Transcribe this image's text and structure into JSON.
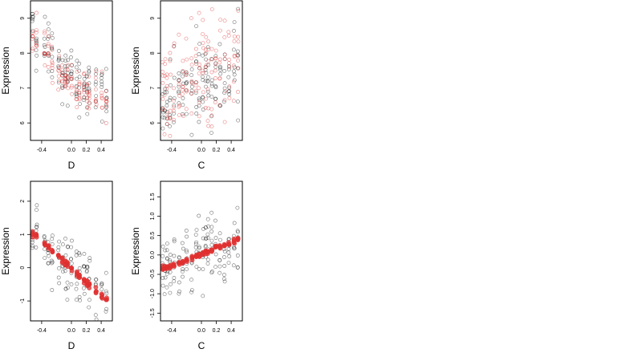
{
  "chart_data": [
    {
      "type": "scatter",
      "xlabel": "D",
      "ylabel": "Expression",
      "xlim": [
        -0.55,
        0.55
      ],
      "ylim": [
        5.5,
        9.5
      ],
      "xticks": [
        -0.4,
        0.0,
        0.2,
        0.4
      ],
      "xtick_labels": [
        "-0.4",
        "0.0",
        "0.2",
        "0.4"
      ],
      "yticks": [
        6,
        7,
        8,
        9
      ],
      "ytick_labels": [
        "6",
        "7",
        "8",
        "9"
      ],
      "x_columns": [
        -0.52,
        -0.47,
        -0.36,
        -0.31,
        -0.26,
        -0.17,
        -0.12,
        -0.08,
        -0.05,
        0.0,
        0.07,
        0.11,
        0.17,
        0.21,
        0.24,
        0.33,
        0.41,
        0.47
      ],
      "series": [
        {
          "color": "#000000",
          "marker": "open-circle",
          "trend_x": [
            -0.5,
            -0.3,
            -0.1,
            0.1,
            0.3,
            0.5
          ],
          "trend_y": [
            8.6,
            8.1,
            7.4,
            7.0,
            6.9,
            6.8
          ],
          "spread": 0.45
        },
        {
          "color": "#e03030",
          "marker": "open-circle",
          "trend_x": [
            -0.5,
            -0.3,
            -0.1,
            0.1,
            0.3,
            0.5
          ],
          "trend_y": [
            8.4,
            7.9,
            7.3,
            7.0,
            6.9,
            6.6
          ],
          "spread": 0.28
        }
      ]
    },
    {
      "type": "scatter",
      "xlabel": "C",
      "ylabel": "Expression",
      "xlim": [
        -0.55,
        0.55
      ],
      "ylim": [
        5.5,
        9.5
      ],
      "xticks": [
        -0.4,
        0.0,
        0.2,
        0.4
      ],
      "xtick_labels": [
        "-0.4",
        "0.0",
        "0.2",
        "0.4"
      ],
      "yticks": [
        6,
        7,
        8,
        9
      ],
      "ytick_labels": [
        "6",
        "7",
        "8",
        "9"
      ],
      "x_columns": [
        -0.52,
        -0.49,
        -0.46,
        -0.42,
        -0.37,
        -0.3,
        -0.25,
        -0.2,
        -0.13,
        -0.07,
        -0.03,
        0.02,
        0.06,
        0.09,
        0.14,
        0.19,
        0.25,
        0.31,
        0.37,
        0.44,
        0.49
      ],
      "series": [
        {
          "color": "#000000",
          "marker": "open-circle",
          "trend_x": [
            -0.5,
            -0.3,
            -0.1,
            0.1,
            0.3,
            0.5
          ],
          "trend_y": [
            6.4,
            7.0,
            7.2,
            7.3,
            7.4,
            7.6
          ],
          "spread": 0.7
        },
        {
          "color": "#e03030",
          "marker": "open-circle",
          "trend_x": [
            -0.5,
            -0.3,
            -0.1,
            0.1,
            0.3,
            0.5
          ],
          "trend_y": [
            6.9,
            7.1,
            7.3,
            7.5,
            7.6,
            7.6
          ],
          "spread": 0.75
        }
      ]
    },
    {
      "type": "scatter",
      "xlabel": "D",
      "ylabel": "Expression",
      "xlim": [
        -0.55,
        0.55
      ],
      "ylim": [
        -1.6,
        2.6
      ],
      "xticks": [
        -0.4,
        0.0,
        0.2,
        0.4
      ],
      "xtick_labels": [
        "-0.4",
        "0.0",
        "0.2",
        "0.4"
      ],
      "yticks": [
        -1,
        0,
        1,
        2
      ],
      "ytick_labels": [
        "-1",
        "0",
        "1",
        "2"
      ],
      "x_columns": [
        -0.52,
        -0.47,
        -0.36,
        -0.31,
        -0.26,
        -0.17,
        -0.12,
        -0.08,
        -0.05,
        0.0,
        0.07,
        0.11,
        0.17,
        0.21,
        0.24,
        0.33,
        0.41,
        0.47
      ],
      "series": [
        {
          "color": "#000000",
          "marker": "open-circle",
          "trend_x": [
            -0.5,
            -0.3,
            0.0,
            0.2,
            0.5
          ],
          "trend_y": [
            1.1,
            0.6,
            0.0,
            -0.4,
            -0.9
          ],
          "spread": 0.45
        },
        {
          "color": "#e03030",
          "marker": "filled-circle",
          "trend_x": [
            -0.5,
            -0.3,
            0.0,
            0.2,
            0.5
          ],
          "trend_y": [
            1.0,
            0.6,
            0.0,
            -0.45,
            -1.05
          ],
          "spread": 0.05
        }
      ]
    },
    {
      "type": "scatter",
      "xlabel": "C",
      "ylabel": "Expression",
      "xlim": [
        -0.55,
        0.55
      ],
      "ylim": [
        -1.7,
        1.9
      ],
      "xticks": [
        -0.4,
        0.0,
        0.2,
        0.4
      ],
      "xtick_labels": [
        "-0.4",
        "0.0",
        "0.2",
        "0.4"
      ],
      "yticks": [
        -1.5,
        -1.0,
        -0.5,
        0.0,
        0.5,
        1.0,
        1.5
      ],
      "ytick_labels": [
        "-1.5",
        "-1.0",
        "-0.5",
        "0.0",
        "0.5",
        "1.0",
        "1.5"
      ],
      "x_columns": [
        -0.52,
        -0.49,
        -0.46,
        -0.42,
        -0.37,
        -0.3,
        -0.25,
        -0.2,
        -0.13,
        -0.07,
        -0.03,
        0.02,
        0.06,
        0.09,
        0.14,
        0.19,
        0.25,
        0.31,
        0.37,
        0.44,
        0.49
      ],
      "series": [
        {
          "color": "#000000",
          "marker": "open-circle",
          "trend_x": [
            -0.5,
            0.5
          ],
          "trend_y": [
            -0.35,
            0.4
          ],
          "spread": 0.45
        },
        {
          "color": "#e03030",
          "marker": "filled-circle",
          "trend_x": [
            -0.5,
            0.5
          ],
          "trend_y": [
            -0.35,
            0.4
          ],
          "spread": 0.03
        }
      ]
    }
  ]
}
